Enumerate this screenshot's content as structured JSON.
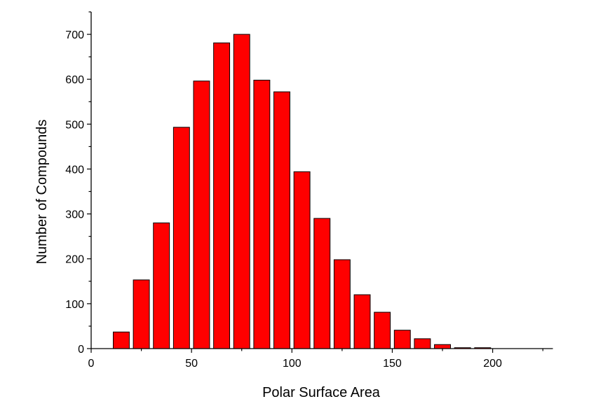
{
  "chart_data": {
    "type": "bar",
    "xlabel": "Polar Surface Area",
    "ylabel": "Number of Compounds",
    "xlim": [
      0,
      230
    ],
    "ylim": [
      0,
      750
    ],
    "x_ticks": [
      0,
      50,
      100,
      150,
      200
    ],
    "y_ticks": [
      0,
      100,
      200,
      300,
      400,
      500,
      600,
      700
    ],
    "bar_width": 8,
    "bar_color": "#ff0000",
    "bar_edge_color": "#000000",
    "grid": false,
    "bins": [
      15,
      25,
      35,
      45,
      55,
      65,
      75,
      85,
      95,
      105,
      115,
      125,
      135,
      145,
      155,
      165,
      175,
      185,
      195
    ],
    "values": [
      37,
      153,
      280,
      493,
      596,
      681,
      700,
      598,
      572,
      394,
      290,
      198,
      120,
      81,
      41,
      22,
      9,
      2,
      2
    ]
  }
}
